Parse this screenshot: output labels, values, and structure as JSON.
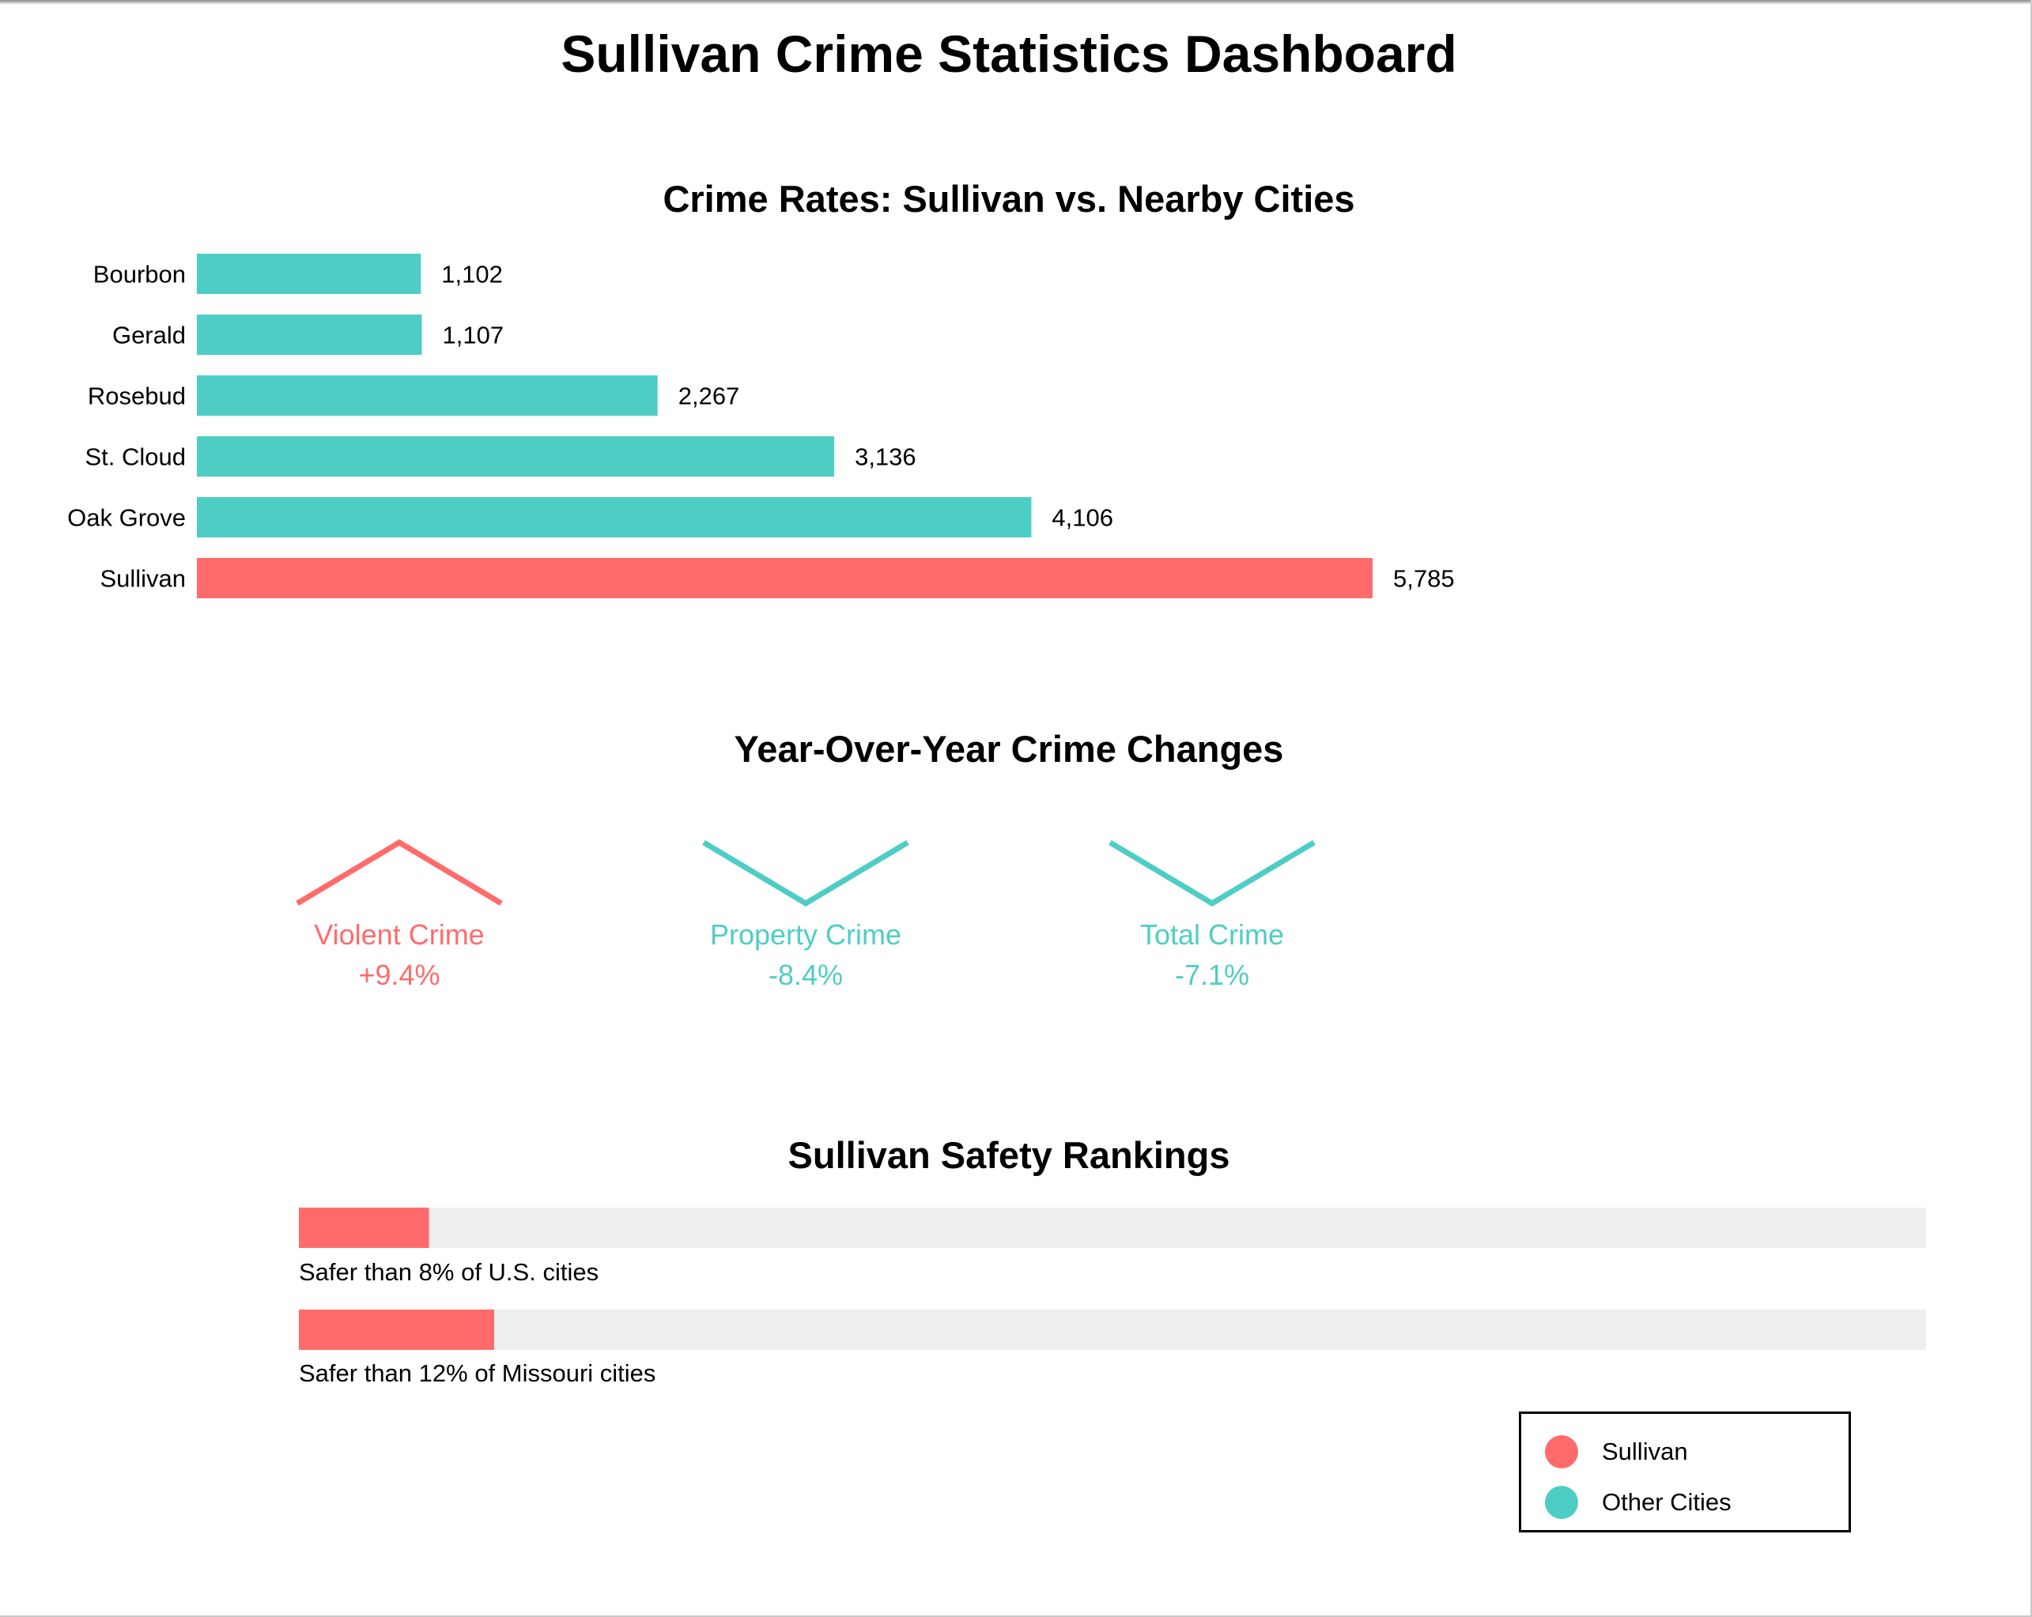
{
  "page": {
    "title": "Sullivan Crime Statistics Dashboard"
  },
  "colors": {
    "sullivan": "#ff6b6b",
    "other": "#4ecdc4",
    "track": "#eeeeee"
  },
  "chart_data": [
    {
      "type": "bar",
      "orientation": "horizontal",
      "title": "Crime Rates: Sullivan vs. Nearby Cities",
      "categories": [
        "Bourbon",
        "Gerald",
        "Rosebud",
        "St. Cloud",
        "Oak Grove",
        "Sullivan"
      ],
      "values": [
        1102,
        1107,
        2267,
        3136,
        4106,
        5785
      ],
      "value_labels": [
        "1,102",
        "1,107",
        "2,267",
        "3,136",
        "4,106",
        "5,785"
      ],
      "highlight": "Sullivan",
      "xlim": [
        0,
        5785
      ]
    },
    {
      "type": "line",
      "title": "Year-Over-Year Crime Changes",
      "items": [
        {
          "name": "Violent Crime",
          "value": 9.4,
          "label": "+9.4%",
          "direction": "up"
        },
        {
          "name": "Property Crime",
          "value": -8.4,
          "label": "-8.4%",
          "direction": "down"
        },
        {
          "name": "Total Crime",
          "value": -7.1,
          "label": "-7.1%",
          "direction": "down"
        }
      ]
    },
    {
      "type": "bar",
      "title": "Sullivan Safety Rankings",
      "items": [
        {
          "percent": 8,
          "label": "Safer than 8% of U.S. cities"
        },
        {
          "percent": 12,
          "label": "Safer than 12% of Missouri cities"
        }
      ],
      "xlim": [
        0,
        100
      ]
    }
  ],
  "legend": {
    "items": [
      {
        "label": "Sullivan",
        "color": "#ff6b6b"
      },
      {
        "label": "Other Cities",
        "color": "#4ecdc4"
      }
    ]
  }
}
